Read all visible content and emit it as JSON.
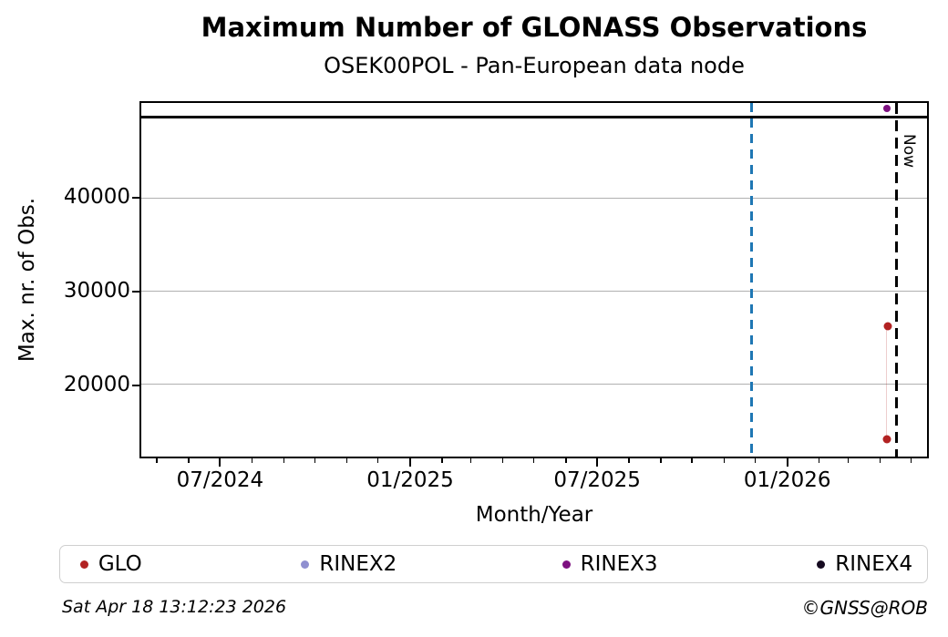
{
  "header": {
    "title": "Maximum Number of GLONASS Observations",
    "subtitle": "OSEK00POL - Pan-European data node"
  },
  "chart_data": {
    "type": "scatter",
    "title": "Maximum Number of GLONASS Observations",
    "subtitle": "OSEK00POL - Pan-European data node",
    "xlabel": "Month/Year",
    "ylabel": "Max. nr. of Obs.",
    "xlim": [
      "2024-04-14",
      "2026-05-18"
    ],
    "ylim": [
      12200,
      50300
    ],
    "y_ticks": [
      20000,
      30000,
      40000
    ],
    "x_major_tick_labels": [
      "07/2024",
      "01/2025",
      "07/2025",
      "01/2026"
    ],
    "x_minor_ticks": "monthly",
    "grid": "horizontal-only",
    "grid_color": "#b0b0b0",
    "series": [
      {
        "name": "GLO",
        "color": "#b22222",
        "points": [
          {
            "date": "2026-04-09",
            "value": 14100
          },
          {
            "date": "2026-04-10",
            "value": 26200
          }
        ],
        "connect": true
      },
      {
        "name": "RINEX2",
        "color": "#8f8fd0",
        "points": [],
        "connect": false
      },
      {
        "name": "RINEX3",
        "color": "#7d1080",
        "points": [
          {
            "date": "2026-04-09",
            "value": 49700
          }
        ],
        "connect": false
      },
      {
        "name": "RINEX4",
        "color": "#150a20",
        "points": [],
        "connect": false
      }
    ],
    "annotations": {
      "hline": {
        "value": 48800,
        "color": "#000000"
      },
      "vline_blue": {
        "date": "2025-11-28",
        "color": "#1f77b4",
        "style": "dashed"
      },
      "vline_now": {
        "date": "2026-04-18",
        "label": "Now",
        "color": "#000000",
        "style": "dashed"
      }
    },
    "legend_position": "bottom"
  },
  "footer": {
    "timestamp": "Sat Apr 18 13:12:23 2026",
    "credit": "©GNSS@ROB"
  }
}
